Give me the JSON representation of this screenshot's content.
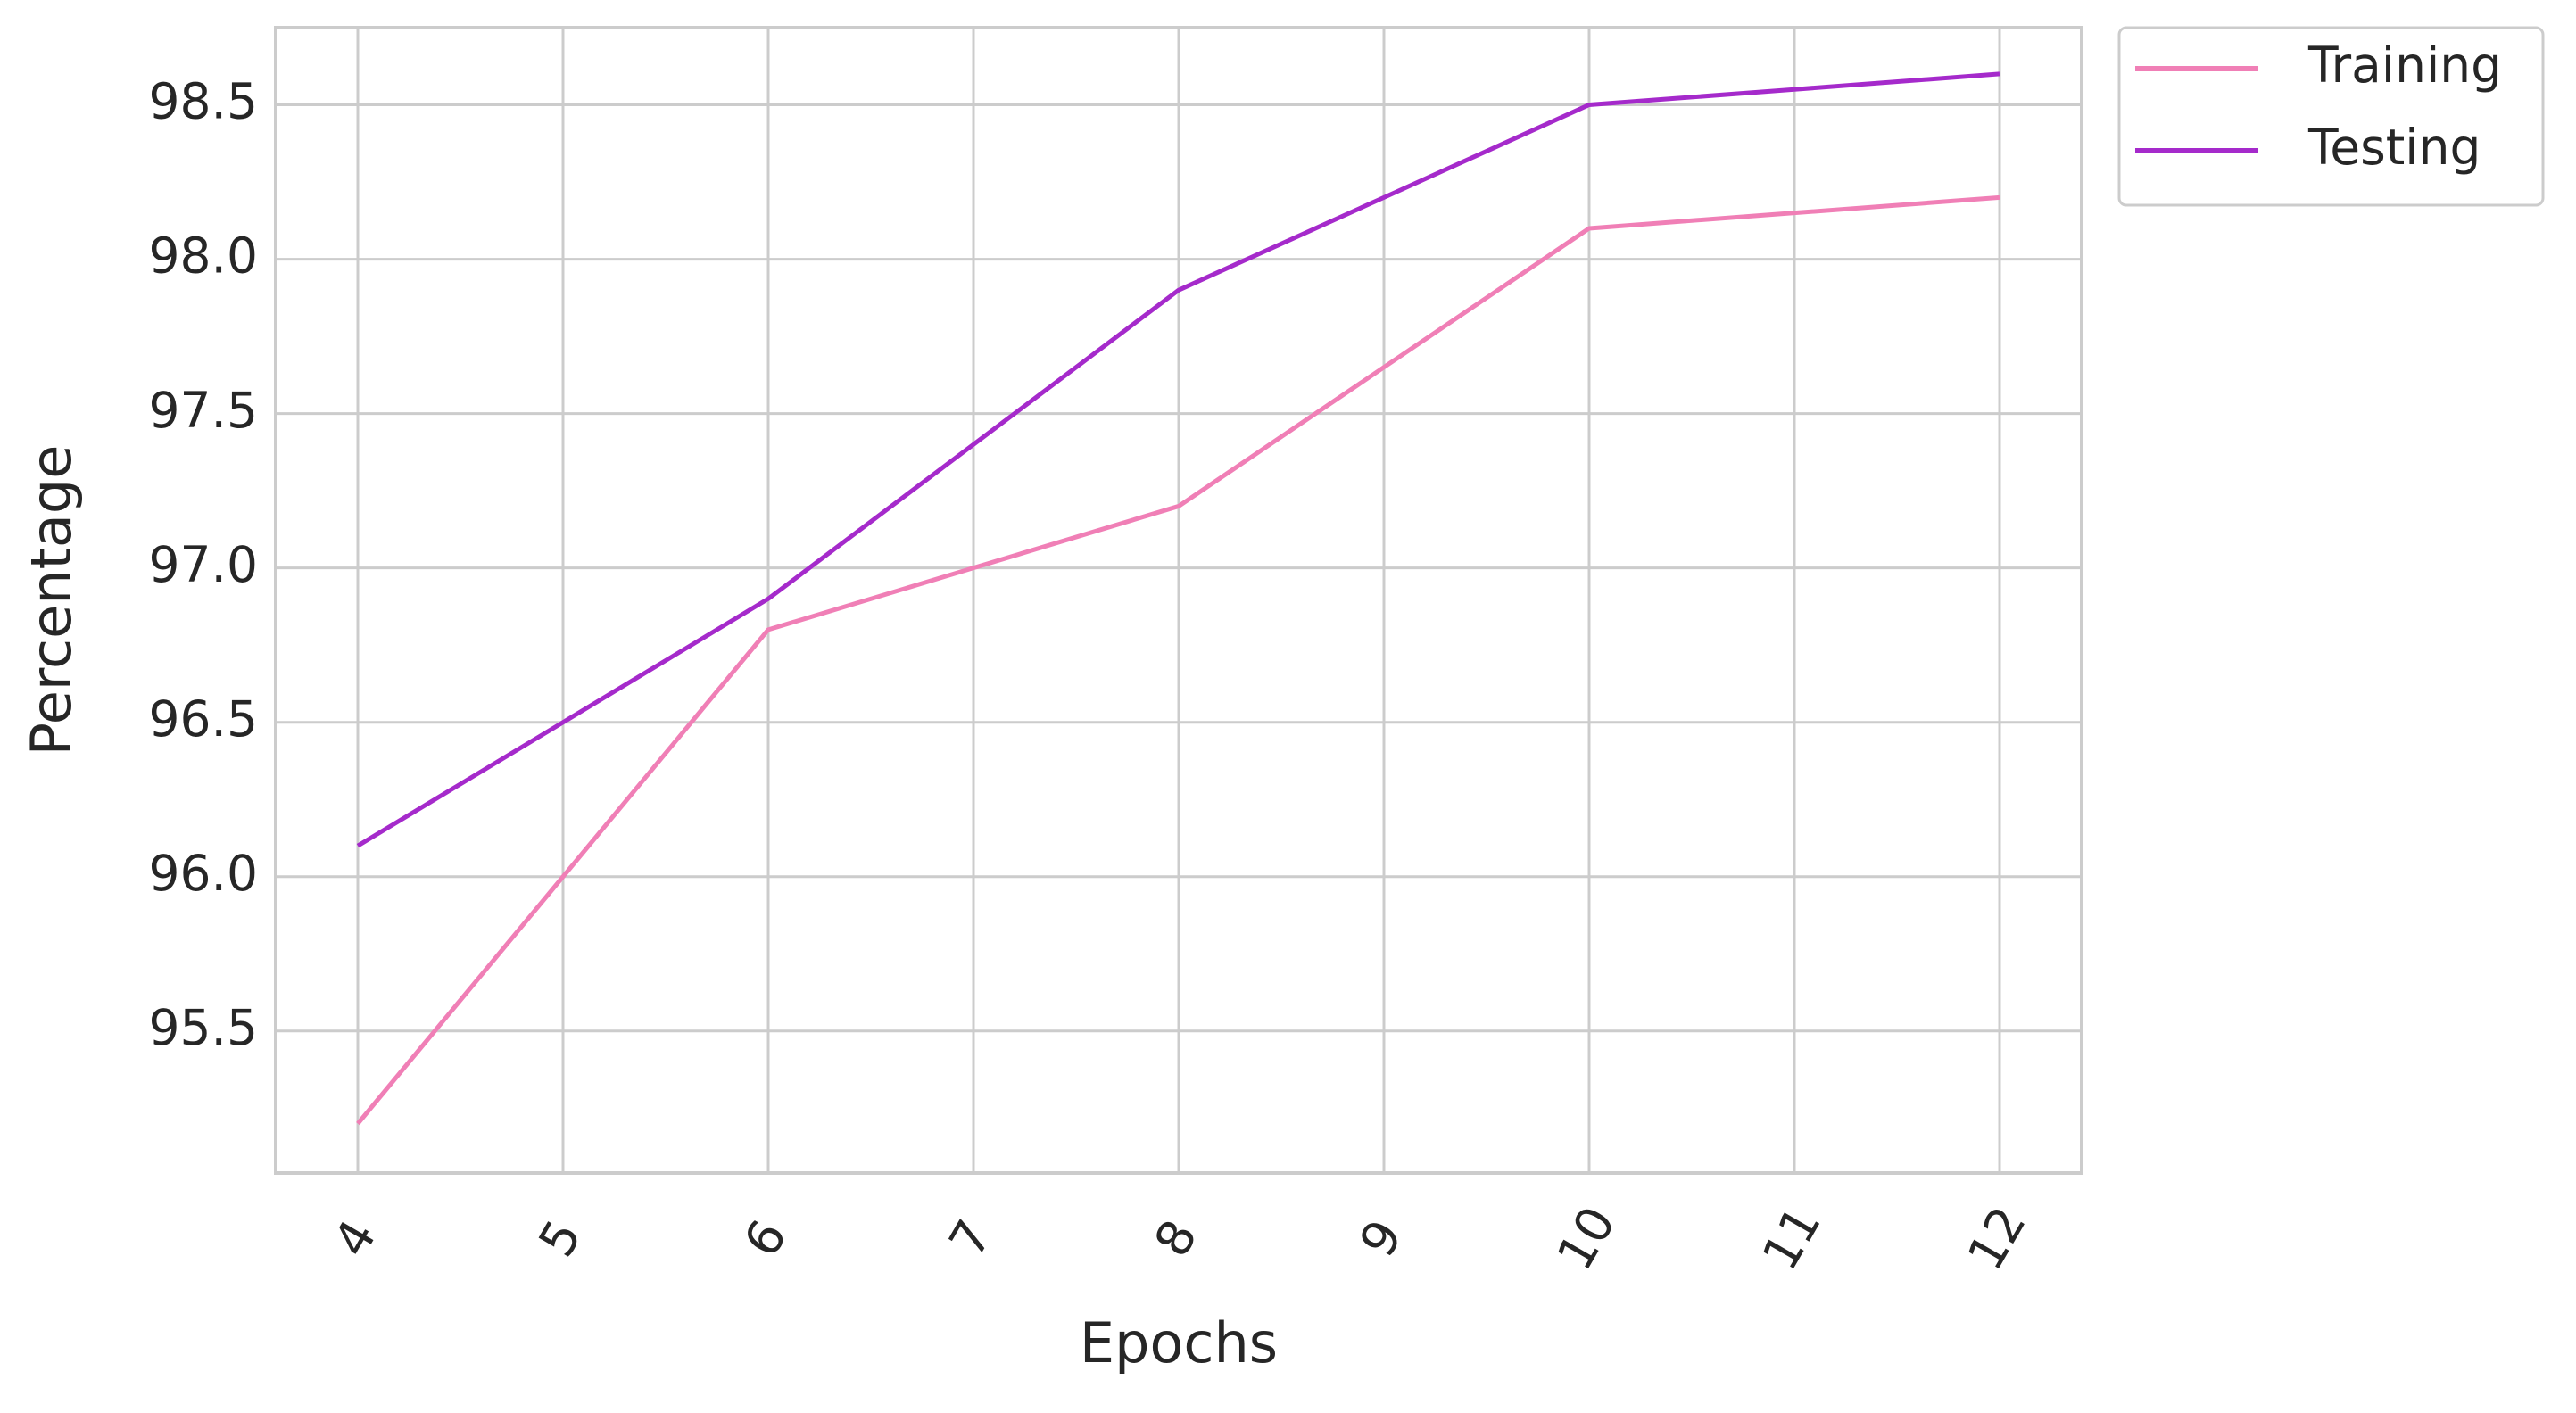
{
  "chart_data": {
    "type": "line",
    "x_label": "Epochs",
    "y_label": "Percentage",
    "x": [
      4,
      5,
      6,
      7,
      8,
      9,
      10,
      11,
      12
    ],
    "series": [
      {
        "name": "Training",
        "color": "#f07fb6",
        "values": [
          95.2,
          96.0,
          96.8,
          97.0,
          97.2,
          97.65,
          98.1,
          98.15,
          98.2
        ]
      },
      {
        "name": "Testing",
        "color": "#a52acb",
        "values": [
          96.1,
          96.5,
          96.9,
          97.4,
          97.9,
          98.2,
          98.5,
          98.55,
          98.6
        ]
      }
    ],
    "xlim": [
      3.6,
      12.4
    ],
    "xticks": [
      4,
      5,
      6,
      7,
      8,
      9,
      10,
      11,
      12
    ],
    "ylim": [
      95.04,
      98.75
    ],
    "yticks": [
      95.5,
      {
        "value": 96,
        "label": "96.0"
      },
      96.5,
      {
        "value": 97,
        "label": "97.0"
      },
      97.5,
      {
        "value": 98,
        "label": "98.0"
      },
      98.5
    ],
    "grid": true,
    "legend": "outside upper right"
  }
}
